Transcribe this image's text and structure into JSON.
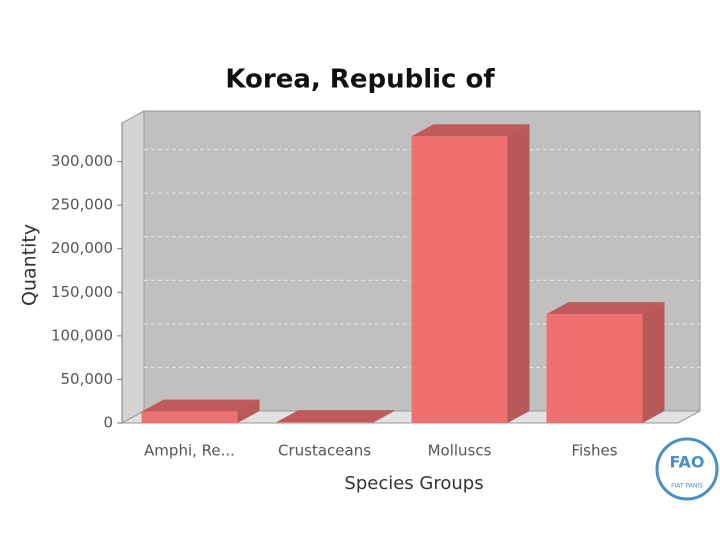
{
  "chart_data": {
    "type": "bar3d",
    "title": "Korea, Republic of",
    "x_label": "Species Groups",
    "y_label": "Quantity",
    "categories": [
      "Amphi, Re...",
      "Crustaceans",
      "Molluscs",
      "Fishes"
    ],
    "values": [
      13000,
      1000,
      329000,
      125000
    ],
    "color": "#f07070",
    "ylim": [
      0,
      350000
    ],
    "yticks": [
      0,
      {
        "value": 50000,
        "label": "50,000"
      },
      {
        "value": 100000,
        "label": "100,000"
      },
      {
        "value": 150000,
        "label": "150,000"
      },
      {
        "value": 200000,
        "label": "200,000"
      },
      {
        "value": 250000,
        "label": "250,000"
      },
      {
        "value": 300000,
        "label": "300,000"
      }
    ],
    "grid": true
  },
  "logo": {
    "letters": "FAO",
    "motto": "FIAT PANIS"
  }
}
